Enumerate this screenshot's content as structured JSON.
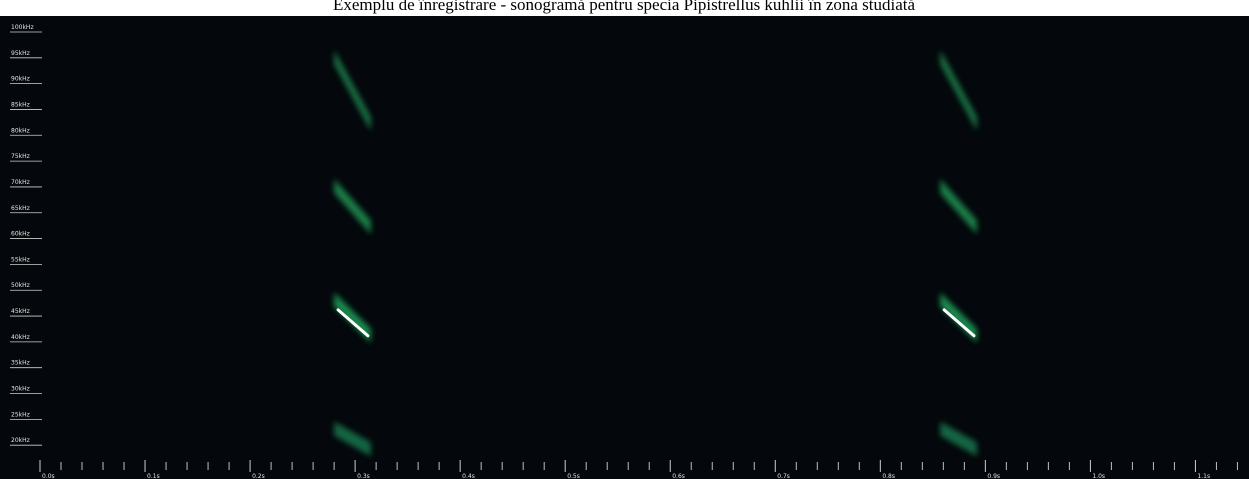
{
  "chart_data": {
    "type": "spectrogram",
    "title": "Exemplu de înregistrare - sonogramă pentru specia Pipistrellus kuhlii în zona studiată",
    "xlim": [
      0,
      1.151
    ],
    "ylim": [
      15,
      106
    ],
    "xticks": [
      {
        "value": 0.0,
        "label": "0.0s"
      },
      {
        "value": 0.1,
        "label": "0.1s"
      },
      {
        "value": 0.2,
        "label": "0.2s"
      },
      {
        "value": 0.3,
        "label": "0.3s"
      },
      {
        "value": 0.4,
        "label": "0.4s"
      },
      {
        "value": 0.5,
        "label": "0.5s"
      },
      {
        "value": 0.6,
        "label": "0.6s"
      },
      {
        "value": 0.7,
        "label": "0.7s"
      },
      {
        "value": 0.8,
        "label": "0.8s"
      },
      {
        "value": 0.9,
        "label": "0.9s"
      },
      {
        "value": 1.0,
        "label": "1.0s"
      },
      {
        "value": 1.1,
        "label": "1.1s"
      }
    ],
    "xminorticks": [
      0.02,
      0.04,
      0.06,
      0.08,
      0.12,
      0.14,
      0.16,
      0.18,
      0.22,
      0.24,
      0.26,
      0.28,
      0.32,
      0.34,
      0.36,
      0.38,
      0.42,
      0.44,
      0.46,
      0.48,
      0.52,
      0.54,
      0.56,
      0.58,
      0.62,
      0.64,
      0.66,
      0.68,
      0.72,
      0.74,
      0.76,
      0.78,
      0.82,
      0.84,
      0.86,
      0.88,
      0.92,
      0.94,
      0.96,
      0.98,
      1.02,
      1.04,
      1.06,
      1.08,
      1.12,
      1.14
    ],
    "yticks": [
      {
        "value": 100,
        "label": "100kHz"
      },
      {
        "value": 95,
        "label": "95kHz"
      },
      {
        "value": 90,
        "label": "90kHz"
      },
      {
        "value": 85,
        "label": "85kHz"
      },
      {
        "value": 80,
        "label": "80kHz"
      },
      {
        "value": 75,
        "label": "75kHz"
      },
      {
        "value": 70,
        "label": "70kHz"
      },
      {
        "value": 65,
        "label": "65kHz"
      },
      {
        "value": 60,
        "label": "60kHz"
      },
      {
        "value": 55,
        "label": "55kHz"
      },
      {
        "value": 50,
        "label": "50kHz"
      },
      {
        "value": 45,
        "label": "45kHz"
      },
      {
        "value": 40,
        "label": "40kHz"
      },
      {
        "value": 35,
        "label": "35kHz"
      },
      {
        "value": 30,
        "label": "30kHz"
      },
      {
        "value": 25,
        "label": "25kHz"
      },
      {
        "value": 20,
        "label": "20kHz"
      }
    ],
    "call_times": [
      0.28,
      0.857
    ],
    "bands": [
      {
        "start_khz": 48,
        "end_khz": 41,
        "color": "#1f9a55"
      },
      {
        "start_khz": 70,
        "end_khz": 62,
        "color": "#1c8a4e"
      },
      {
        "start_khz": 95,
        "end_khz": 82,
        "color": "#1a7e4a"
      },
      {
        "start_khz": 23,
        "end_khz": 19,
        "color": "#17704a"
      }
    ],
    "trace": {
      "start_khz": 46,
      "end_khz": 41,
      "color": "#ffffff"
    }
  }
}
